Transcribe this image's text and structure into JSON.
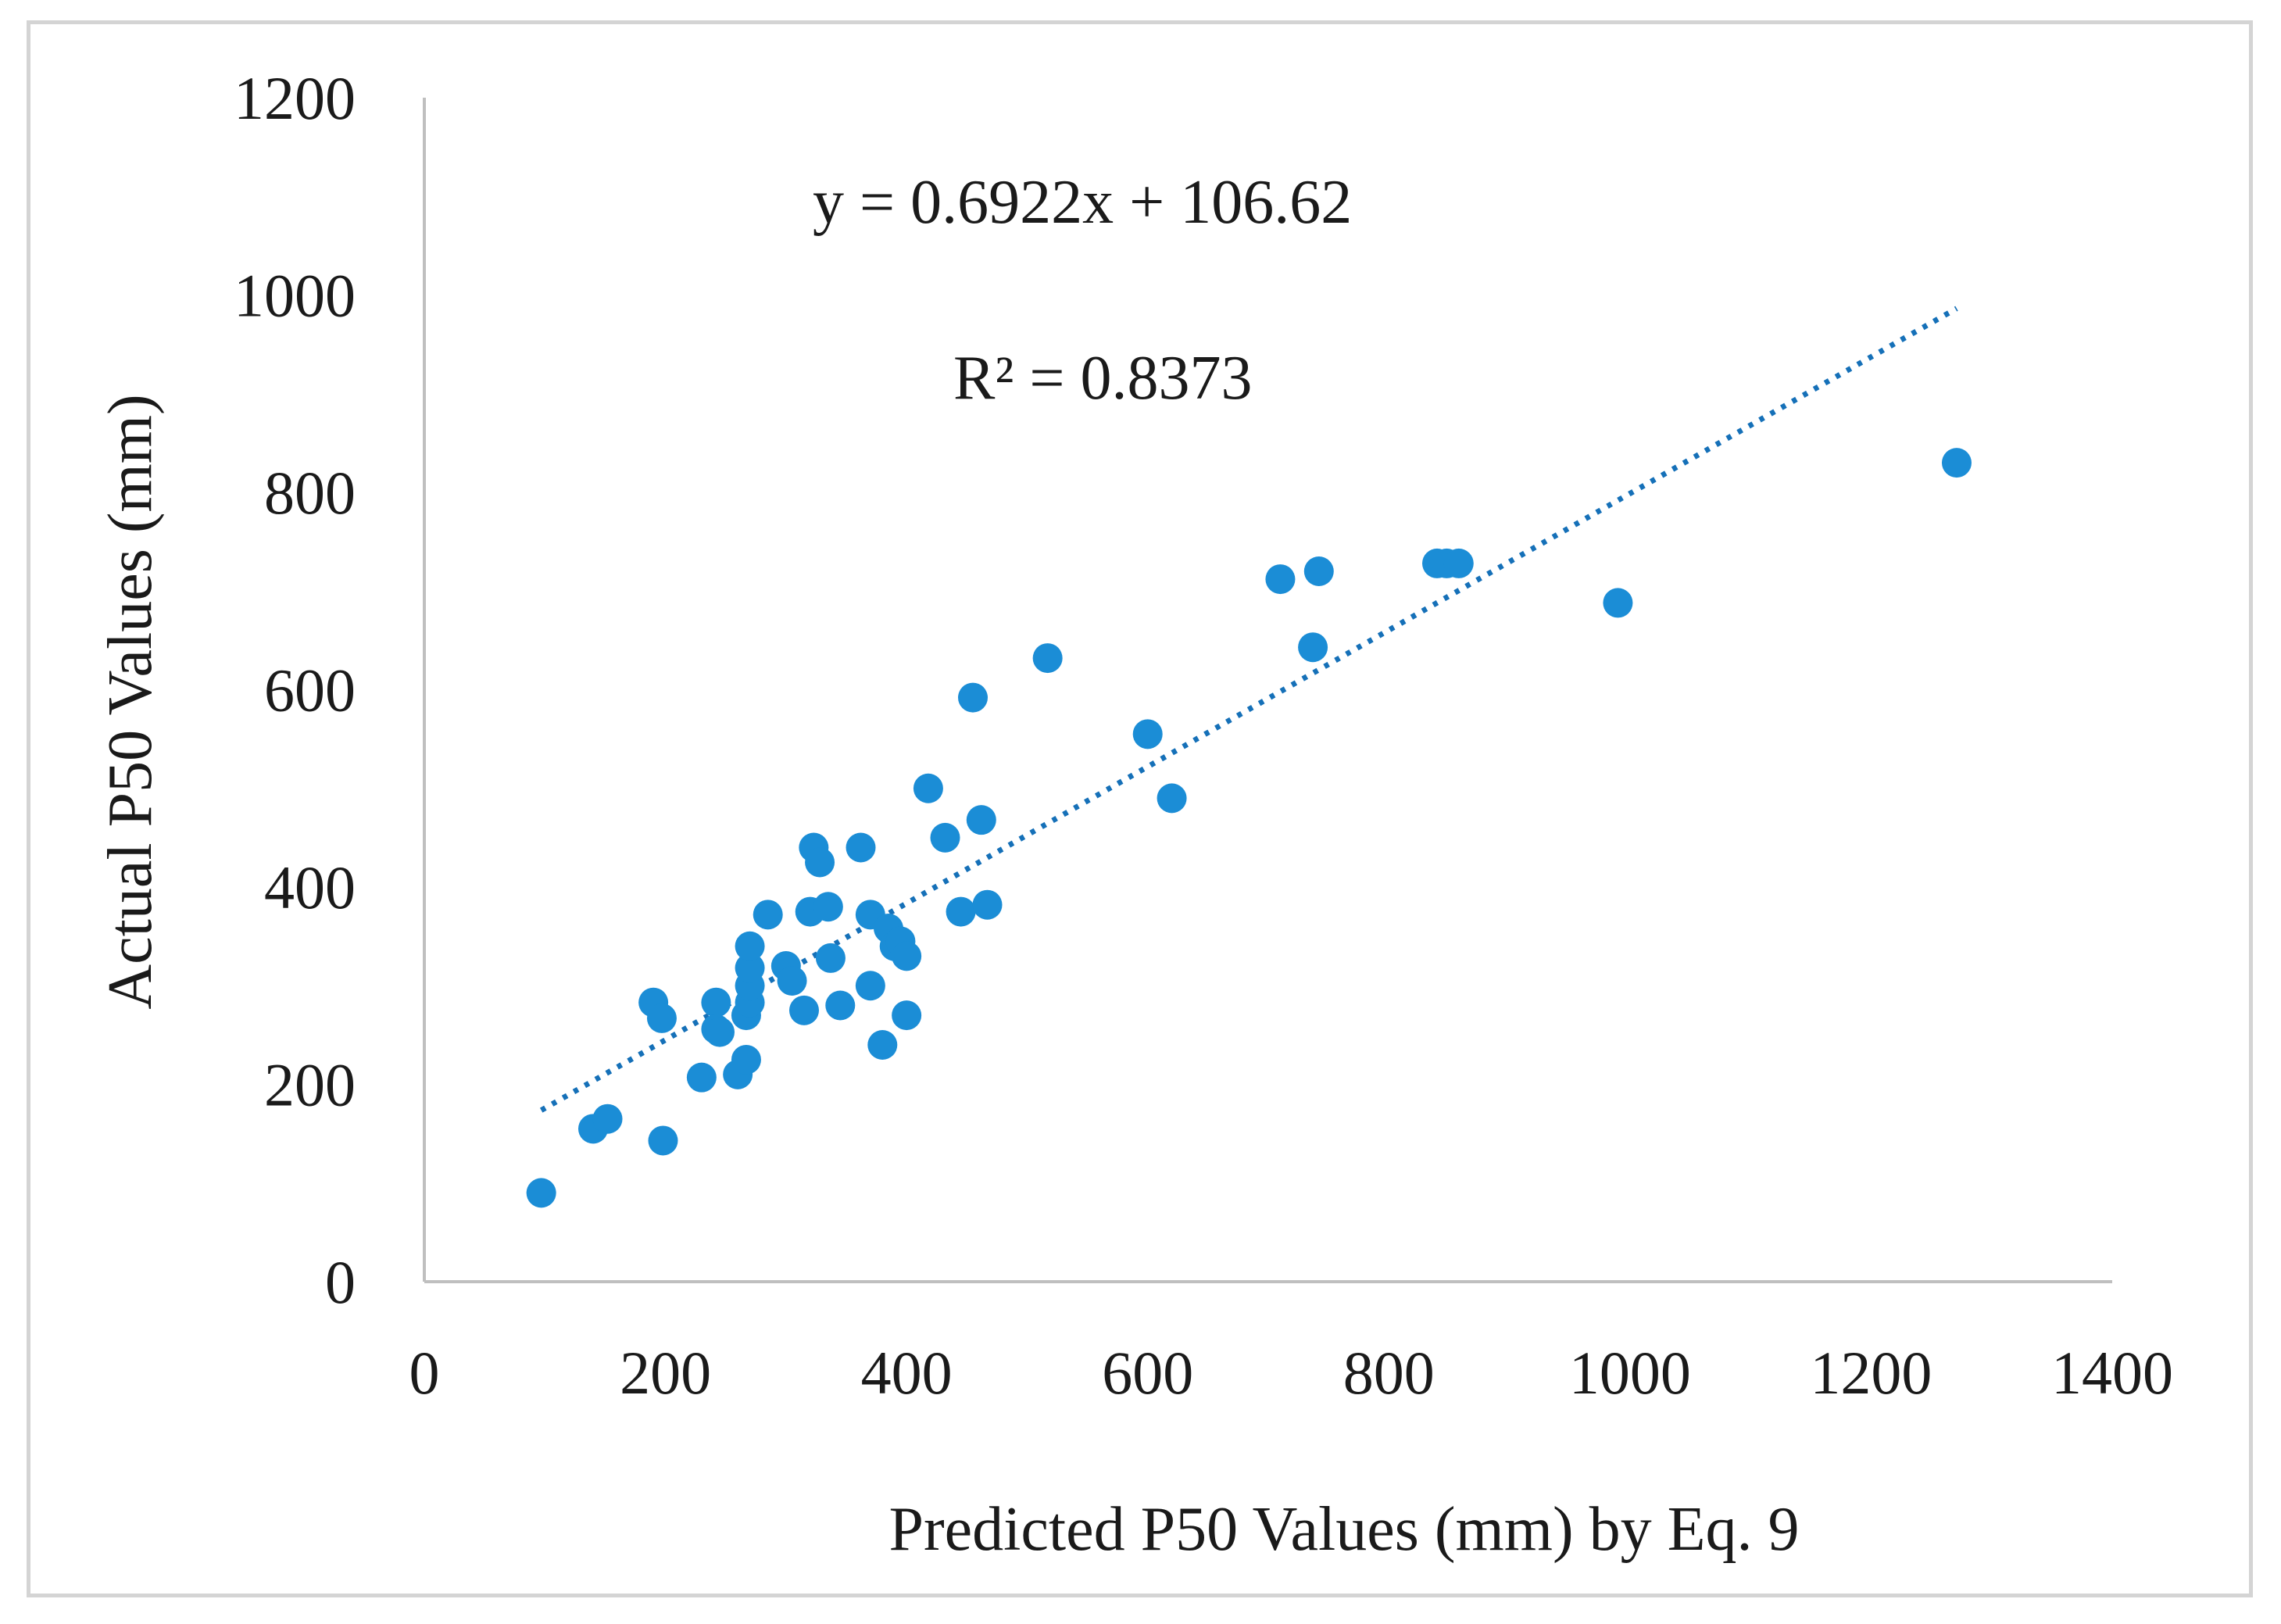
{
  "chart_data": {
    "type": "scatter",
    "title": "",
    "xlabel": "Predicted P50 Values (mm) by Eq. 9",
    "ylabel": "Actual P50 Values (mm)",
    "xlim": [
      0,
      1400
    ],
    "ylim": [
      0,
      1200
    ],
    "x_ticks": [
      "0",
      "200",
      "400",
      "600",
      "800",
      "1000",
      "1200",
      "1400"
    ],
    "y_ticks": [
      "0",
      "200",
      "400",
      "600",
      "800",
      "1000",
      "1200"
    ],
    "grid": false,
    "legend": "none",
    "series": [
      {
        "name": "P50",
        "color": "#1b8dd6",
        "points": [
          [
            97,
            90
          ],
          [
            140,
            155
          ],
          [
            152,
            165
          ],
          [
            198,
            143
          ],
          [
            190,
            283
          ],
          [
            197,
            267
          ],
          [
            242,
            283
          ],
          [
            242,
            256
          ],
          [
            245,
            253
          ],
          [
            230,
            207
          ],
          [
            260,
            210
          ],
          [
            267,
            225
          ],
          [
            267,
            270
          ],
          [
            270,
            283
          ],
          [
            270,
            300
          ],
          [
            270,
            318
          ],
          [
            270,
            340
          ],
          [
            285,
            372
          ],
          [
            300,
            320
          ],
          [
            305,
            305
          ],
          [
            315,
            275
          ],
          [
            320,
            375
          ],
          [
            323,
            440
          ],
          [
            328,
            425
          ],
          [
            335,
            380
          ],
          [
            337,
            328
          ],
          [
            345,
            280
          ],
          [
            362,
            440
          ],
          [
            370,
            300
          ],
          [
            370,
            372
          ],
          [
            380,
            240
          ],
          [
            385,
            358
          ],
          [
            390,
            340
          ],
          [
            395,
            345
          ],
          [
            400,
            330
          ],
          [
            400,
            270
          ],
          [
            418,
            500
          ],
          [
            432,
            450
          ],
          [
            445,
            375
          ],
          [
            455,
            592
          ],
          [
            462,
            468
          ],
          [
            467,
            382
          ],
          [
            517,
            632
          ],
          [
            600,
            555
          ],
          [
            620,
            490
          ],
          [
            710,
            712
          ],
          [
            737,
            643
          ],
          [
            742,
            720
          ],
          [
            840,
            728
          ],
          [
            848,
            728
          ],
          [
            858,
            728
          ],
          [
            990,
            688
          ],
          [
            1271,
            830
          ]
        ]
      }
    ],
    "trendline": {
      "equation": "y = 0.6922x + 106.62",
      "r2_label": "R² = 0.8373",
      "slope": 0.6922,
      "intercept": 106.62,
      "x_range": [
        97,
        1271
      ]
    }
  }
}
